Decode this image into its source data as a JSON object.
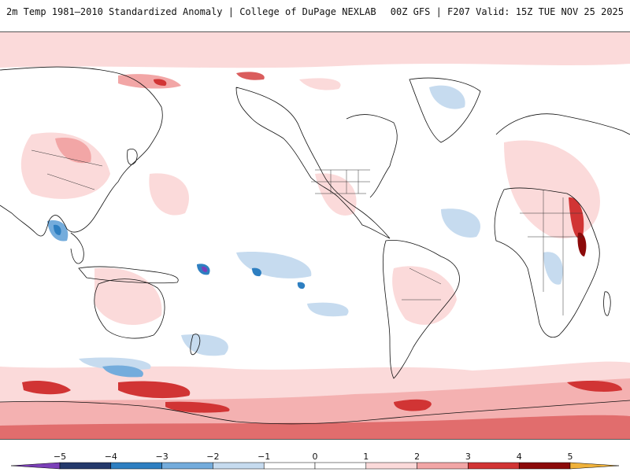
{
  "header": {
    "title_left": "2m Temp 1981–2010 Standardized Anomaly | College of DuPage NEXLAB",
    "title_right": "00Z GFS | F207 Valid: 15Z TUE NOV 25 2025"
  },
  "map": {
    "projection": "equirectangular",
    "central_meridian": "180",
    "field": "2m temperature standardized anomaly"
  },
  "colorbar": {
    "ticks": [
      "−5",
      "−4",
      "−3",
      "−2",
      "−1",
      "0",
      "1",
      "2",
      "3",
      "4",
      "5"
    ],
    "bins": [
      {
        "range": [
          -6,
          -5
        ],
        "color": "#7b3fb8"
      },
      {
        "range": [
          -5,
          -4
        ],
        "color": "#24396b"
      },
      {
        "range": [
          -4,
          -3
        ],
        "color": "#2e7fc1"
      },
      {
        "range": [
          -3,
          -2
        ],
        "color": "#74acdc"
      },
      {
        "range": [
          -2,
          -1
        ],
        "color": "#c6dbef"
      },
      {
        "range": [
          -1,
          0
        ],
        "color": "#ffffff"
      },
      {
        "range": [
          0,
          1
        ],
        "color": "#ffffff"
      },
      {
        "range": [
          1,
          2
        ],
        "color": "#fbdada"
      },
      {
        "range": [
          2,
          3
        ],
        "color": "#f2a6a6"
      },
      {
        "range": [
          3,
          4
        ],
        "color": "#d13434"
      },
      {
        "range": [
          4,
          5
        ],
        "color": "#8c0a0a"
      },
      {
        "range": [
          5,
          6
        ],
        "color": "#f0b23a"
      }
    ]
  }
}
